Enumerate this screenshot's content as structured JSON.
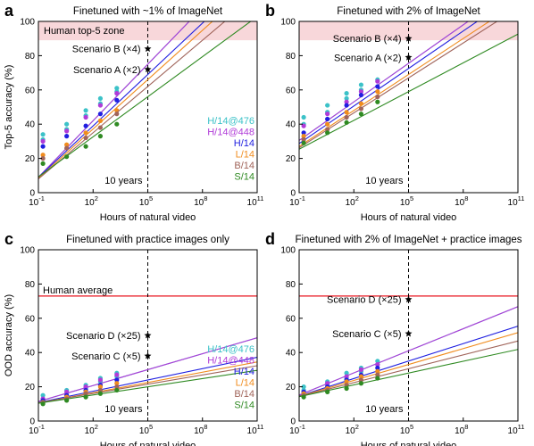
{
  "chart_data": [
    {
      "type": "scatter",
      "panel_label": "a",
      "title": "Finetuned with ~1% of ImageNet",
      "xlabel": "Hours of natural video",
      "ylabel": "Top-5 accuracy (%)",
      "xlim_log10": [
        -1,
        11
      ],
      "ylim": [
        0,
        100
      ],
      "xticks": [
        "10",
        "10",
        "10",
        "10",
        "10"
      ],
      "xtick_exponents": [
        "-1",
        "2",
        "5",
        "8",
        "11"
      ],
      "yticks": [
        "0",
        "20",
        "40",
        "60",
        "80",
        "100"
      ],
      "zone": {
        "label": "Human top-5 zone",
        "y_range": [
          89,
          100
        ],
        "color": "#f8d7da"
      },
      "human_line": null,
      "vline": {
        "x_log10": 5,
        "label": "10 years"
      },
      "scenarios": [
        {
          "label": "Scenario B (×4)",
          "x_log10": 5,
          "y": 84
        },
        {
          "label": "Scenario A (×2)",
          "x_log10": 5,
          "y": 72
        }
      ],
      "legend": [
        "H/14@476",
        "H/14@448",
        "H/14",
        "L/14",
        "B/14",
        "S/14"
      ],
      "x_points_log10": [
        -0.75,
        0.55,
        1.6,
        2.4,
        3.3
      ],
      "series": [
        {
          "name": "H/14@476",
          "color": "#3cc2c8",
          "fit": [
            20,
            11
          ],
          "points": [
            [
              -0.75,
              31
            ],
            [
              -0.75,
              34
            ],
            [
              0.55,
              37
            ],
            [
              0.55,
              40
            ],
            [
              1.6,
              45
            ],
            [
              1.6,
              48
            ],
            [
              2.4,
              52
            ],
            [
              2.4,
              55
            ],
            [
              3.3,
              59
            ],
            [
              3.3,
              61
            ]
          ]
        },
        {
          "name": "H/14@448",
          "color": "#b03bd8",
          "fit": [
            20,
            11
          ],
          "points": [
            [
              -0.75,
              30
            ],
            [
              0.55,
              36
            ],
            [
              1.6,
              44
            ],
            [
              2.4,
              51
            ],
            [
              3.3,
              58
            ]
          ]
        },
        {
          "name": "H/14",
          "color": "#1f1fe0",
          "fit": [
            19,
            10
          ],
          "points": [
            [
              -0.75,
              27
            ],
            [
              0.55,
              33
            ],
            [
              1.6,
              39
            ],
            [
              2.4,
              46
            ],
            [
              3.3,
              54
            ]
          ]
        },
        {
          "name": "L/14",
          "color": "#f08c1e",
          "fit": [
            18,
            9.6
          ],
          "points": [
            [
              -0.75,
              22
            ],
            [
              0.55,
              28
            ],
            [
              1.6,
              35
            ],
            [
              2.4,
              42
            ],
            [
              3.3,
              48
            ]
          ]
        },
        {
          "name": "B/14",
          "color": "#a0645a",
          "fit": [
            17,
            9
          ],
          "points": [
            [
              -0.75,
              20
            ],
            [
              0.55,
              26
            ],
            [
              1.6,
              32
            ],
            [
              2.4,
              38
            ],
            [
              3.3,
              46
            ]
          ]
        },
        {
          "name": "S/14",
          "color": "#2f8a22",
          "fit": [
            17,
            7.8
          ],
          "points": [
            [
              -0.75,
              17
            ],
            [
              0.55,
              21
            ],
            [
              1.6,
              27
            ],
            [
              2.4,
              33
            ],
            [
              3.3,
              40
            ]
          ]
        }
      ]
    },
    {
      "type": "scatter",
      "panel_label": "b",
      "title": "Finetuned with 2% of ImageNet",
      "xlabel": "Hours of natural video",
      "ylabel": "",
      "xlim_log10": [
        -1,
        11
      ],
      "ylim": [
        0,
        100
      ],
      "xticks": [
        "10",
        "10",
        "10",
        "10",
        "10"
      ],
      "xtick_exponents": [
        "-1",
        "2",
        "5",
        "8",
        "11"
      ],
      "yticks": [
        "0",
        "20",
        "40",
        "60",
        "80",
        "100"
      ],
      "zone": {
        "label": "",
        "y_range": [
          89,
          100
        ],
        "color": "#f8d7da"
      },
      "human_line": null,
      "vline": {
        "x_log10": 5,
        "label": "10 years"
      },
      "scenarios": [
        {
          "label": "Scenario B (×4)",
          "x_log10": 5,
          "y": 90
        },
        {
          "label": "Scenario A (×2)",
          "x_log10": 5,
          "y": 79
        }
      ],
      "legend": [],
      "x_points_log10": [
        -0.75,
        0.55,
        1.6,
        2.4,
        3.3
      ],
      "series": [
        {
          "name": "H/14@476",
          "color": "#3cc2c8",
          "fit": [
            38,
            7.5
          ],
          "points": [
            [
              -0.75,
              40
            ],
            [
              -0.75,
              44
            ],
            [
              0.55,
              47
            ],
            [
              0.55,
              51
            ],
            [
              1.6,
              55
            ],
            [
              1.6,
              58
            ],
            [
              2.4,
              60
            ],
            [
              2.4,
              63
            ],
            [
              3.3,
              66
            ]
          ]
        },
        {
          "name": "H/14@448",
          "color": "#b03bd8",
          "fit": [
            38,
            7.5
          ],
          "points": [
            [
              -0.75,
              39
            ],
            [
              0.55,
              46
            ],
            [
              1.6,
              53
            ],
            [
              2.4,
              59
            ],
            [
              3.3,
              65
            ]
          ]
        },
        {
          "name": "H/14",
          "color": "#1f1fe0",
          "fit": [
            36,
            7.3
          ],
          "points": [
            [
              -0.75,
              35
            ],
            [
              0.55,
              43
            ],
            [
              1.6,
              51
            ],
            [
              2.4,
              57
            ],
            [
              3.3,
              62
            ]
          ]
        },
        {
          "name": "L/14",
          "color": "#f08c1e",
          "fit": [
            34,
            7.0
          ],
          "points": [
            [
              -0.75,
              33
            ],
            [
              0.55,
              40
            ],
            [
              1.6,
              47
            ],
            [
              2.4,
              52
            ],
            [
              3.3,
              59
            ]
          ]
        },
        {
          "name": "B/14",
          "color": "#a0645a",
          "fit": [
            33,
            6.8
          ],
          "points": [
            [
              -0.75,
              31
            ],
            [
              0.55,
              37
            ],
            [
              1.6,
              44
            ],
            [
              2.4,
              49
            ],
            [
              3.3,
              56
            ]
          ]
        },
        {
          "name": "S/14",
          "color": "#2f8a22",
          "fit": [
            31,
            5.6
          ],
          "points": [
            [
              -0.75,
              29
            ],
            [
              0.55,
              35
            ],
            [
              1.6,
              41
            ],
            [
              2.4,
              46
            ],
            [
              3.3,
              53
            ]
          ]
        }
      ]
    },
    {
      "type": "scatter",
      "panel_label": "c",
      "title": "Finetuned with practice images only",
      "xlabel": "Hours of natural video",
      "ylabel": "OOD accuracy (%)",
      "xlim_log10": [
        -1,
        11
      ],
      "ylim": [
        0,
        100
      ],
      "xticks": [
        "10",
        "10",
        "10",
        "10",
        "10"
      ],
      "xtick_exponents": [
        "-1",
        "2",
        "5",
        "8",
        "11"
      ],
      "yticks": [
        "0",
        "20",
        "40",
        "60",
        "80",
        "100"
      ],
      "zone": null,
      "human_line": {
        "label": "Human average",
        "y": 73,
        "color": "#e8141e"
      },
      "vline": {
        "x_log10": 5,
        "label": "10 years"
      },
      "scenarios": [
        {
          "label": "Scenario D (×25)",
          "x_log10": 5,
          "y": 50
        },
        {
          "label": "Scenario C (×5)",
          "x_log10": 5,
          "y": 38
        }
      ],
      "legend": [
        "H/14@476",
        "H/14@448",
        "H/14",
        "L/14",
        "B/14",
        "S/14"
      ],
      "x_points_log10": [
        -0.75,
        0.55,
        1.6,
        2.4,
        3.3
      ],
      "series": [
        {
          "name": "H/14@476",
          "color": "#3cc2c8",
          "fit": [
            14.5,
            3.1
          ],
          "points": [
            [
              -0.75,
              13
            ],
            [
              -0.75,
              15
            ],
            [
              0.55,
              16
            ],
            [
              0.55,
              18
            ],
            [
              1.6,
              19
            ],
            [
              1.6,
              21
            ],
            [
              2.4,
              23
            ],
            [
              2.4,
              25
            ],
            [
              3.3,
              26
            ],
            [
              3.3,
              28
            ]
          ]
        },
        {
          "name": "H/14@448",
          "color": "#b03bd8",
          "fit": [
            14.5,
            3.1
          ],
          "points": [
            [
              -0.75,
              13
            ],
            [
              0.55,
              17
            ],
            [
              1.6,
              20
            ],
            [
              2.4,
              24
            ],
            [
              3.3,
              27
            ]
          ]
        },
        {
          "name": "H/14",
          "color": "#1f1fe0",
          "fit": [
            13,
            2.2
          ],
          "points": [
            [
              -0.75,
              12
            ],
            [
              0.55,
              15
            ],
            [
              1.6,
              18
            ],
            [
              2.4,
              21
            ],
            [
              3.3,
              24
            ]
          ]
        },
        {
          "name": "L/14",
          "color": "#f08c1e",
          "fit": [
            12.5,
            2.0
          ],
          "points": [
            [
              -0.75,
              11
            ],
            [
              0.55,
              14
            ],
            [
              1.6,
              17
            ],
            [
              2.4,
              20
            ],
            [
              3.3,
              22
            ]
          ]
        },
        {
          "name": "B/14",
          "color": "#a0645a",
          "fit": [
            12.5,
            1.8
          ],
          "points": [
            [
              -0.75,
              11
            ],
            [
              0.55,
              13
            ],
            [
              1.6,
              16
            ],
            [
              2.4,
              18
            ],
            [
              3.3,
              20
            ]
          ]
        },
        {
          "name": "S/14",
          "color": "#2f8a22",
          "fit": [
            12,
            1.6
          ],
          "points": [
            [
              -0.75,
              10
            ],
            [
              0.55,
              12
            ],
            [
              1.6,
              14
            ],
            [
              2.4,
              16
            ],
            [
              3.3,
              18
            ]
          ]
        }
      ]
    },
    {
      "type": "scatter",
      "panel_label": "d",
      "title": "Finetuned with 2% of ImageNet + practice images",
      "xlabel": "Hours of natural video",
      "ylabel": "",
      "xlim_log10": [
        -1,
        11
      ],
      "ylim": [
        0,
        100
      ],
      "xticks": [
        "10",
        "10",
        "10",
        "10",
        "10"
      ],
      "xtick_exponents": [
        "-1",
        "2",
        "5",
        "8",
        "11"
      ],
      "yticks": [
        "0",
        "20",
        "40",
        "60",
        "80",
        "100"
      ],
      "zone": null,
      "human_line": {
        "label": "",
        "y": 73,
        "color": "#e8141e"
      },
      "vline": {
        "x_log10": 5,
        "label": "10 years"
      },
      "scenarios": [
        {
          "label": "Scenario D (×25)",
          "x_log10": 5,
          "y": 71
        },
        {
          "label": "Scenario C (×5)",
          "x_log10": 5,
          "y": 51
        }
      ],
      "legend": [],
      "x_points_log10": [
        -0.75,
        0.55,
        1.6,
        2.4,
        3.3
      ],
      "series": [
        {
          "name": "H/14@476",
          "color": "#3cc2c8",
          "fit": [
            19.5,
            4.3
          ],
          "points": [
            [
              -0.75,
              18
            ],
            [
              -0.75,
              20
            ],
            [
              0.55,
              21
            ],
            [
              0.55,
              23
            ],
            [
              1.6,
              25
            ],
            [
              1.6,
              28
            ],
            [
              2.4,
              29
            ],
            [
              2.4,
              31
            ],
            [
              3.3,
              33
            ],
            [
              3.3,
              35
            ]
          ]
        },
        {
          "name": "H/14@448",
          "color": "#b03bd8",
          "fit": [
            19.5,
            4.3
          ],
          "points": [
            [
              -0.75,
              17
            ],
            [
              0.55,
              22
            ],
            [
              1.6,
              26
            ],
            [
              2.4,
              30
            ],
            [
              3.3,
              33
            ]
          ]
        },
        {
          "name": "H/14",
          "color": "#1f1fe0",
          "fit": [
            18,
            3.4
          ],
          "points": [
            [
              -0.75,
              17
            ],
            [
              0.55,
              20
            ],
            [
              1.6,
              24
            ],
            [
              2.4,
              27
            ],
            [
              3.3,
              31
            ]
          ]
        },
        {
          "name": "L/14",
          "color": "#f08c1e",
          "fit": [
            17.5,
            3.1
          ],
          "points": [
            [
              -0.75,
              16
            ],
            [
              0.55,
              19
            ],
            [
              1.6,
              23
            ],
            [
              2.4,
              26
            ],
            [
              3.3,
              29
            ]
          ]
        },
        {
          "name": "B/14",
          "color": "#a0645a",
          "fit": [
            17,
            2.7
          ],
          "points": [
            [
              -0.75,
              15
            ],
            [
              0.55,
              18
            ],
            [
              1.6,
              21
            ],
            [
              2.4,
              24
            ],
            [
              3.3,
              27
            ]
          ]
        },
        {
          "name": "S/14",
          "color": "#2f8a22",
          "fit": [
            16.5,
            2.3
          ],
          "points": [
            [
              -0.75,
              14
            ],
            [
              0.55,
              17
            ],
            [
              1.6,
              19
            ],
            [
              2.4,
              22
            ],
            [
              3.3,
              25
            ]
          ]
        }
      ]
    }
  ]
}
